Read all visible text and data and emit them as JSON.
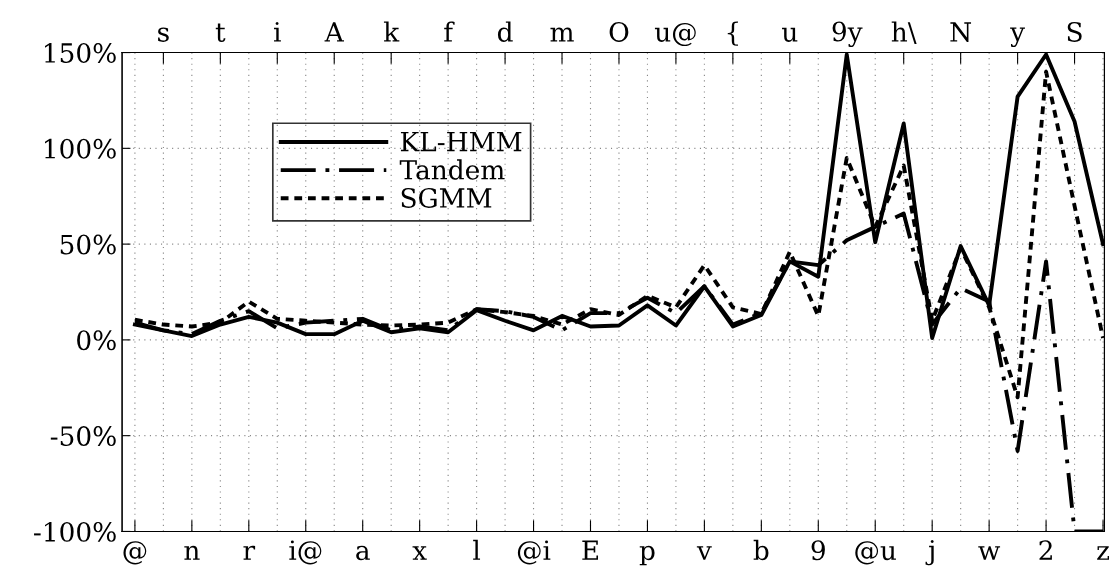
{
  "chart_data": {
    "type": "line",
    "categories": [
      "@",
      "s",
      "n",
      "t",
      "r",
      "i",
      "i@",
      "A",
      "a",
      "k",
      "x",
      "f",
      "l",
      "d",
      "@i",
      "m",
      "E",
      "O",
      "p",
      "u@",
      "v",
      "{",
      "b",
      "u",
      "9",
      "9y",
      "@u",
      "h\\",
      "j",
      "N",
      "w",
      "y",
      "2",
      "S",
      "z"
    ],
    "series": [
      {
        "name": "KL-HMM",
        "color": "#000000",
        "line_style": "solid",
        "values": [
          8,
          5,
          2,
          8,
          12,
          9,
          3,
          3,
          10,
          4,
          6,
          4,
          15.5,
          10,
          5,
          12.5,
          7,
          7.5,
          18,
          7.5,
          28,
          7,
          13,
          41,
          33,
          149,
          51,
          113,
          1,
          49,
          18,
          127,
          149,
          114,
          50
        ]
      },
      {
        "name": "Tandem",
        "color": "#000000",
        "line_style": "dashed",
        "values": [
          9,
          5,
          3,
          10,
          15,
          6,
          9,
          10,
          11,
          5,
          7,
          5,
          16,
          15,
          12,
          5,
          14,
          14,
          22,
          14,
          28,
          8,
          14,
          41,
          39,
          52,
          59,
          66,
          8,
          27,
          20,
          -58,
          41,
          -100,
          -100
        ]
      },
      {
        "name": "SGMM",
        "color": "#000000",
        "line_style": "dotted",
        "values": [
          10.5,
          8,
          7,
          9,
          20,
          11,
          10,
          9,
          8,
          7.5,
          8,
          9,
          16,
          14.5,
          12.5,
          8,
          16,
          13,
          23,
          17,
          39,
          17,
          13.5,
          46,
          12.5,
          95,
          59,
          91,
          10,
          48,
          17,
          -30,
          140,
          70,
          1
        ]
      }
    ],
    "ylim": [
      -100,
      150
    ],
    "yticks": [
      {
        "value": -100,
        "label": "-100%"
      },
      {
        "value": -50,
        "label": "-50%"
      },
      {
        "value": 0,
        "label": "0%"
      },
      {
        "value": 50,
        "label": "50%"
      },
      {
        "value": 100,
        "label": "100%"
      },
      {
        "value": 150,
        "label": "150%"
      }
    ],
    "grid": true,
    "legend": "top left",
    "marker": "none"
  }
}
